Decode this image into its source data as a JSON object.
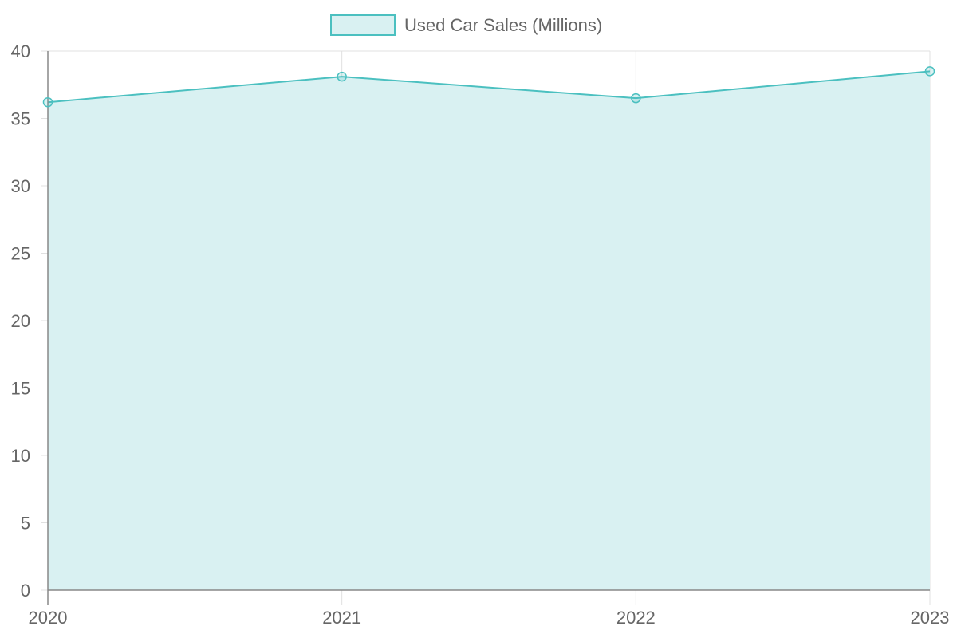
{
  "chart_data": {
    "type": "area",
    "categories": [
      "2020",
      "2021",
      "2022",
      "2023"
    ],
    "series": [
      {
        "name": "Used Car Sales (Millions)",
        "values": [
          36.2,
          38.1,
          36.5,
          38.5
        ]
      }
    ],
    "title": "",
    "xlabel": "",
    "ylabel": "",
    "ylim": [
      0,
      40
    ],
    "yticks": [
      "0",
      "5",
      "10",
      "15",
      "20",
      "25",
      "30",
      "35",
      "40"
    ],
    "grid": true,
    "legend_position": "top-center",
    "colors": {
      "line": "#4bc0c0",
      "fill": "#d9f1f2",
      "grid": "#e0e0e0",
      "axis": "#888888",
      "text": "#666666"
    }
  }
}
